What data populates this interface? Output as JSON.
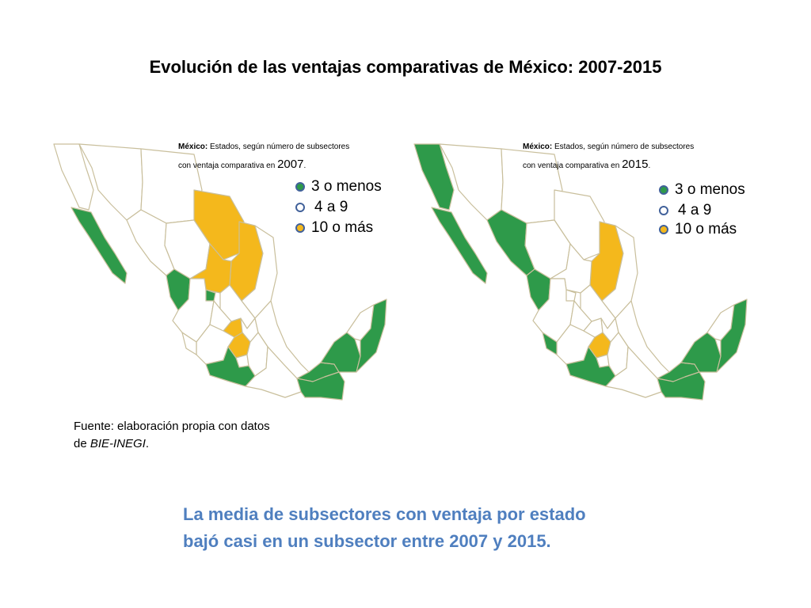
{
  "title": "Evolución de las ventajas comparativas de México: 2007-2015",
  "colors": {
    "low": "#2e9a4a",
    "mid": "#ffffff",
    "high": "#f4b81c",
    "border": "#c9bf9c",
    "legend_stroke": "#41619a",
    "conclusion_text": "#4f7fbf"
  },
  "maps": [
    {
      "year": "2007",
      "caption_bold": "México:",
      "caption_line1": " Estados, según número de subsectores",
      "caption_line2": "con ventaja comparativa en ",
      "caption_year": "2007",
      "caption_end": ".",
      "legend": [
        {
          "label": "3 o menos",
          "category": "low"
        },
        {
          "label": "4 a 9",
          "category": "mid"
        },
        {
          "label": "10 o más",
          "category": "high"
        }
      ],
      "green_states": [
        "Baja California Sur",
        "Nayarit",
        "Aguascalientes",
        "Guerrero",
        "Tabasco",
        "Chiapas",
        "Campeche",
        "Quintana Roo"
      ],
      "yellow_states": [
        "Coahuila",
        "Nuevo León",
        "Zacatecas",
        "Querétaro",
        "Estado de México"
      ]
    },
    {
      "year": "2015",
      "caption_bold": "México:",
      "caption_line1": " Estados, según número de subsectores",
      "caption_line2": "con ventaja comparativa en ",
      "caption_year": "2015",
      "caption_end": ".",
      "legend": [
        {
          "label": "3 o menos",
          "category": "low"
        },
        {
          "label": "4 a 9",
          "category": "mid"
        },
        {
          "label": "10 o más",
          "category": "high"
        }
      ],
      "green_states": [
        "Baja California",
        "Baja California Sur",
        "Sinaloa",
        "Nayarit",
        "Colima",
        "Guerrero",
        "Tabasco",
        "Chiapas",
        "Campeche",
        "Quintana Roo"
      ],
      "yellow_states": [
        "Nuevo León",
        "Estado de México"
      ]
    }
  ],
  "source": {
    "line1": "Fuente: elaboración propia con datos",
    "line2_prefix": "de ",
    "line2_italic": "BIE-INEGI",
    "line2_suffix": "."
  },
  "conclusion": {
    "line1": "La media de subsectores con ventaja por estado",
    "line2": "bajó casi en un subsector entre 2007 y 2015."
  }
}
